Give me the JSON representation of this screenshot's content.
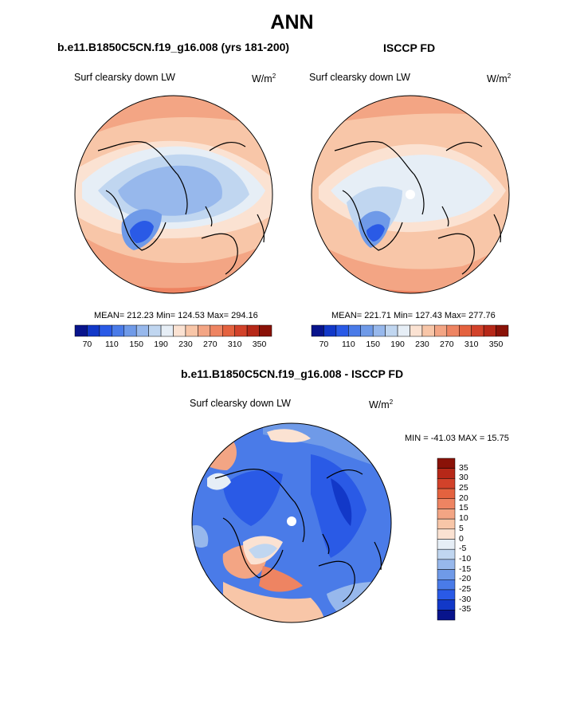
{
  "main_title": "ANN",
  "colors": {
    "scale": [
      "#08148c",
      "#1238c8",
      "#2a5ae6",
      "#4a7be8",
      "#6f9ae8",
      "#97b8ec",
      "#c0d6f0",
      "#e6eef6",
      "#fbe2d2",
      "#f8c6a8",
      "#f3a584",
      "#ee8462",
      "#e4623f",
      "#d2422a",
      "#b62818",
      "#8a1208"
    ]
  },
  "panels": [
    {
      "title": "b.e11.B1850C5CN.f19_g16.008 (yrs 181-200)",
      "variable": "Surf clearsky down LW",
      "units": "W/m",
      "units_sup": "2",
      "stats": "MEAN= 212.23  Min= 124.53  Max= 294.16",
      "colorbar_ticks": [
        "70",
        "110",
        "150",
        "190",
        "230",
        "270",
        "310",
        "350"
      ]
    },
    {
      "title": "ISCCP FD",
      "variable": "Surf clearsky down LW",
      "units": "W/m",
      "units_sup": "2",
      "stats": "MEAN= 221.71  Min= 127.43  Max= 277.76",
      "colorbar_ticks": [
        "70",
        "110",
        "150",
        "190",
        "230",
        "270",
        "310",
        "350"
      ]
    }
  ],
  "difference": {
    "title": "b.e11.B1850C5CN.f19_g16.008 - ISCCP FD",
    "variable": "Surf clearsky down LW",
    "units": "W/m",
    "units_sup": "2",
    "stats": "MIN = -41.03 MAX =  15.75",
    "colorbar_ticks": [
      "35",
      "30",
      "25",
      "20",
      "15",
      "10",
      "5",
      "0",
      "-5",
      "-10",
      "-15",
      "-20",
      "-25",
      "-30",
      "-35"
    ]
  }
}
